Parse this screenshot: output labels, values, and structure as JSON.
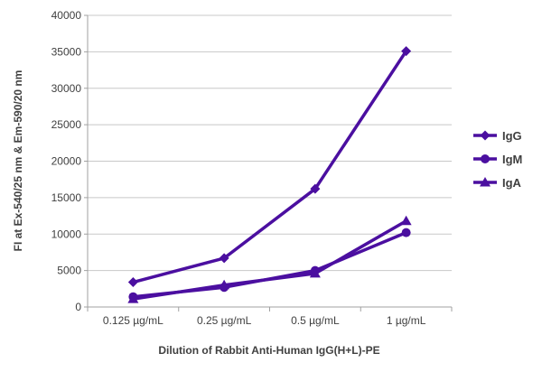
{
  "chart_data": {
    "type": "line",
    "title": "",
    "xlabel": "Dilution of Rabbit Anti-Human IgG(H+L)-PE",
    "ylabel": "FI at Ex-540/25 nm & Em-590/20 nm",
    "categories": [
      "0.125 µg/mL",
      "0.25 µg/mL",
      "0.5 µg/mL",
      "1 µg/mL"
    ],
    "ylim": [
      0,
      40000
    ],
    "yticks": [
      0,
      5000,
      10000,
      15000,
      20000,
      25000,
      30000,
      35000,
      40000
    ],
    "grid": "horizontal",
    "legend_position": "right",
    "line_color": "#4B0FA0",
    "series": [
      {
        "name": "IgG",
        "marker": "diamond",
        "values": [
          3400,
          6700,
          16200,
          35100
        ]
      },
      {
        "name": "IgM",
        "marker": "circle",
        "values": [
          1400,
          2700,
          5000,
          10200
        ]
      },
      {
        "name": "IgA",
        "marker": "triangle",
        "values": [
          1100,
          3000,
          4600,
          11800
        ]
      }
    ]
  }
}
